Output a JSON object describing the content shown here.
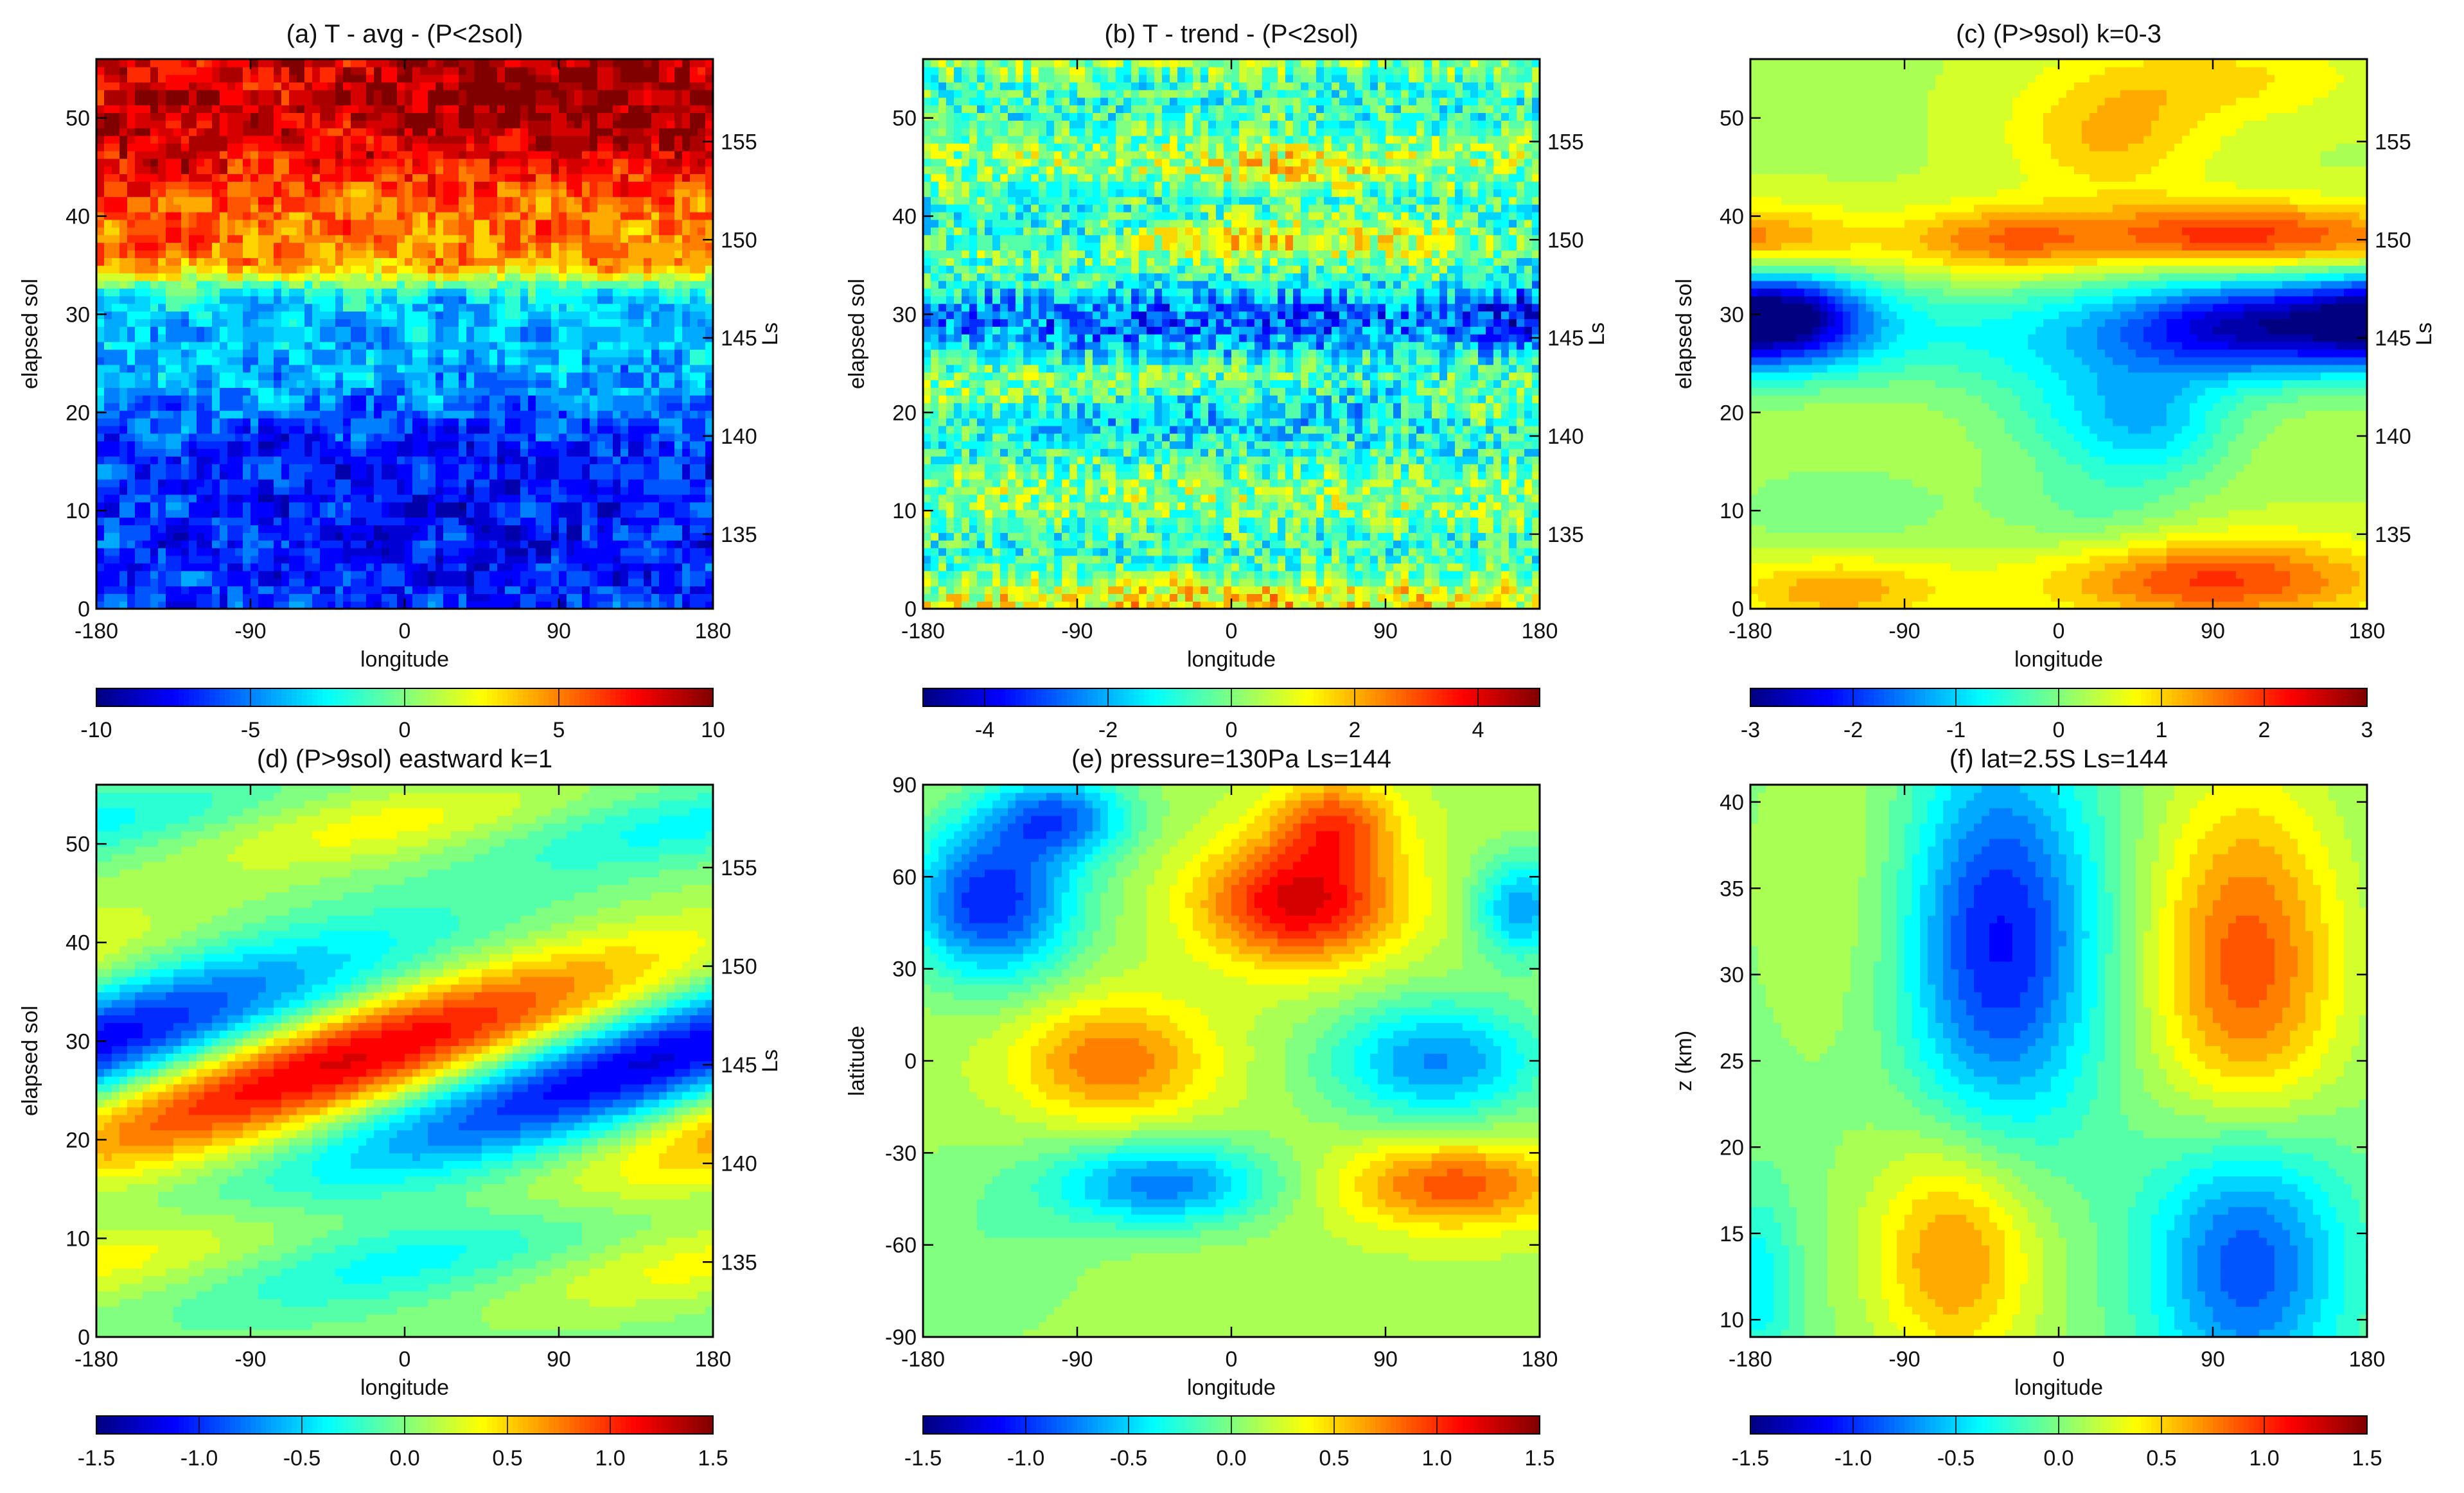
{
  "chart_data": [
    {
      "id": "a",
      "type": "heatmap",
      "title": "(a) T  - avg - (P<2sol)",
      "xlabel": "longitude",
      "ylabel": "elapsed sol",
      "y2label": "Ls",
      "xlim": [
        -180,
        180
      ],
      "ylim": [
        0,
        56
      ],
      "xticks": [
        -180,
        -90,
        0,
        90,
        180
      ],
      "xtick_labels": [
        "-180",
        "-90",
        "0",
        "90",
        "180"
      ],
      "yticks": [
        0,
        10,
        20,
        30,
        40,
        50
      ],
      "ytick_labels": [
        "0",
        "10",
        "20",
        "30",
        "40",
        "50"
      ],
      "y2ticks": [
        135,
        140,
        145,
        150,
        155
      ],
      "y2tick_labels": [
        "135",
        "140",
        "145",
        "150",
        "155"
      ],
      "y2_map": {
        "sol": [
          0,
          56
        ],
        "ls": [
          131.2,
          159.2
        ]
      },
      "colorbar": {
        "min": -10,
        "max": 10,
        "ticks": [
          -10,
          -5,
          0,
          5,
          10
        ],
        "tick_labels": [
          "-10",
          "-5",
          "0",
          "5",
          "10"
        ]
      },
      "field": "a"
    },
    {
      "id": "b",
      "type": "heatmap",
      "title": "(b) T - trend - (P<2sol)",
      "xlabel": "longitude",
      "ylabel": "elapsed sol",
      "y2label": "Ls",
      "xlim": [
        -180,
        180
      ],
      "ylim": [
        0,
        56
      ],
      "xticks": [
        -180,
        -90,
        0,
        90,
        180
      ],
      "xtick_labels": [
        "-180",
        "-90",
        "0",
        "90",
        "180"
      ],
      "yticks": [
        0,
        10,
        20,
        30,
        40,
        50
      ],
      "ytick_labels": [
        "0",
        "10",
        "20",
        "30",
        "40",
        "50"
      ],
      "y2ticks": [
        135,
        140,
        145,
        150,
        155
      ],
      "y2tick_labels": [
        "135",
        "140",
        "145",
        "150",
        "155"
      ],
      "y2_map": {
        "sol": [
          0,
          56
        ],
        "ls": [
          131.2,
          159.2
        ]
      },
      "colorbar": {
        "min": -5,
        "max": 5,
        "ticks": [
          -4,
          -2,
          0,
          2,
          4
        ],
        "tick_labels": [
          "-4",
          "-2",
          "0",
          "2",
          "4"
        ]
      },
      "field": "b"
    },
    {
      "id": "c",
      "type": "heatmap",
      "title": "(c) (P>9sol) k=0-3",
      "xlabel": "longitude",
      "ylabel": "elapsed sol",
      "y2label": "Ls",
      "xlim": [
        -180,
        180
      ],
      "ylim": [
        0,
        56
      ],
      "xticks": [
        -180,
        -90,
        0,
        90,
        180
      ],
      "xtick_labels": [
        "-180",
        "-90",
        "0",
        "90",
        "180"
      ],
      "yticks": [
        0,
        10,
        20,
        30,
        40,
        50
      ],
      "ytick_labels": [
        "0",
        "10",
        "20",
        "30",
        "40",
        "50"
      ],
      "y2ticks": [
        135,
        140,
        145,
        150,
        155
      ],
      "y2tick_labels": [
        "135",
        "140",
        "145",
        "150",
        "155"
      ],
      "y2_map": {
        "sol": [
          0,
          56
        ],
        "ls": [
          131.2,
          159.2
        ]
      },
      "colorbar": {
        "min": -3,
        "max": 3,
        "ticks": [
          -3,
          -2,
          -1,
          0,
          1,
          2,
          3
        ],
        "tick_labels": [
          "-3",
          "-2",
          "-1",
          "0",
          "1",
          "2",
          "3"
        ]
      },
      "field": "c"
    },
    {
      "id": "d",
      "type": "heatmap",
      "title": "(d) (P>9sol) eastward k=1",
      "xlabel": "longitude",
      "ylabel": "elapsed sol",
      "y2label": "Ls",
      "xlim": [
        -180,
        180
      ],
      "ylim": [
        0,
        56
      ],
      "xticks": [
        -180,
        -90,
        0,
        90,
        180
      ],
      "xtick_labels": [
        "-180",
        "-90",
        "0",
        "90",
        "180"
      ],
      "yticks": [
        0,
        10,
        20,
        30,
        40,
        50
      ],
      "ytick_labels": [
        "0",
        "10",
        "20",
        "30",
        "40",
        "50"
      ],
      "y2ticks": [
        135,
        140,
        145,
        150,
        155
      ],
      "y2tick_labels": [
        "135",
        "140",
        "145",
        "150",
        "155"
      ],
      "y2_map": {
        "sol": [
          0,
          56
        ],
        "ls": [
          131.2,
          159.2
        ]
      },
      "colorbar": {
        "min": -1.5,
        "max": 1.5,
        "ticks": [
          -1.5,
          -1.0,
          -0.5,
          0.0,
          0.5,
          1.0,
          1.5
        ],
        "tick_labels": [
          "-1.5",
          "-1.0",
          "-0.5",
          "0.0",
          "0.5",
          "1.0",
          "1.5"
        ]
      },
      "field": "d"
    },
    {
      "id": "e",
      "type": "heatmap",
      "title": "(e) pressure=130Pa Ls=144",
      "xlabel": "longitude",
      "ylabel": "latitude",
      "xlim": [
        -180,
        180
      ],
      "ylim": [
        -90,
        90
      ],
      "xticks": [
        -180,
        -90,
        0,
        90,
        180
      ],
      "xtick_labels": [
        "-180",
        "-90",
        "0",
        "90",
        "180"
      ],
      "yticks": [
        -90,
        -60,
        -30,
        0,
        30,
        60,
        90
      ],
      "ytick_labels": [
        "-90",
        "-60",
        "-30",
        "0",
        "30",
        "60",
        "90"
      ],
      "colorbar": {
        "min": -1.5,
        "max": 1.5,
        "ticks": [
          -1.5,
          -1.0,
          -0.5,
          0.0,
          0.5,
          1.0,
          1.5
        ],
        "tick_labels": [
          "-1.5",
          "-1.0",
          "-0.5",
          "0.0",
          "0.5",
          "1.0",
          "1.5"
        ]
      },
      "field": "e"
    },
    {
      "id": "f",
      "type": "heatmap",
      "title": "(f) lat=2.5S Ls=144",
      "xlabel": "longitude",
      "ylabel": "z (km)",
      "xlim": [
        -180,
        180
      ],
      "ylim": [
        9,
        41
      ],
      "xticks": [
        -180,
        -90,
        0,
        90,
        180
      ],
      "xtick_labels": [
        "-180",
        "-90",
        "0",
        "90",
        "180"
      ],
      "yticks": [
        10,
        15,
        20,
        25,
        30,
        35,
        40
      ],
      "ytick_labels": [
        "10",
        "15",
        "20",
        "25",
        "30",
        "35",
        "40"
      ],
      "colorbar": {
        "min": -1.5,
        "max": 1.5,
        "ticks": [
          -1.5,
          -1.0,
          -0.5,
          0.0,
          0.5,
          1.0,
          1.5
        ],
        "tick_labels": [
          "-1.5",
          "-1.0",
          "-0.5",
          "0.0",
          "0.5",
          "1.0",
          "1.5"
        ]
      },
      "field": "f"
    }
  ]
}
